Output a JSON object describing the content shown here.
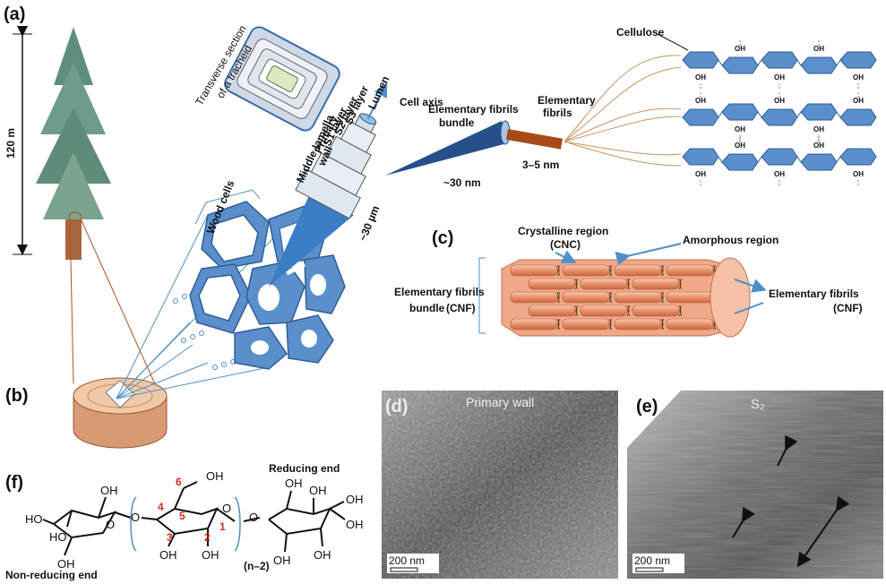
{
  "panel_a": {
    "label": "(a)",
    "height": "120 m",
    "transverse_section": [
      "Transverse section",
      "of a tracheid"
    ],
    "cell_axis": "Cell axis",
    "lumen": "Lumen",
    "layers": [
      "S3 layer",
      "S2 layer",
      "S1 layer"
    ],
    "primary_wall": [
      "Primary",
      "wall"
    ],
    "middle_lamella": "Middle lamella",
    "wood_cells": "Wood cells",
    "cell_size": "~30 µm",
    "bundle": [
      "Elementary fibrils",
      "bundle"
    ],
    "bundle_size": "~30 nm",
    "fibrils": [
      "Elementary",
      "fibrils"
    ],
    "fibril_size": "3–5 nm",
    "cellulose": "Cellulose",
    "hydroxyl": "OH"
  },
  "panel_b": {
    "label": "(b)"
  },
  "panel_c": {
    "label": "(c)",
    "crystalline": [
      "Crystalline region",
      "(CNC)"
    ],
    "amorphous": "Amorphous region",
    "bundle": [
      "Elementary fibrils",
      "bundle",
      "(CNF)"
    ],
    "fibrils": [
      "Elementary fibrils",
      "(CNF)"
    ]
  },
  "panel_d": {
    "label": "(d)",
    "title": "Primary wall",
    "scale": "200 nm"
  },
  "panel_e": {
    "label": "(e)",
    "title": "S₂",
    "scale": "200 nm"
  },
  "panel_f": {
    "label": "(f)",
    "reducing_end": "Reducing end",
    "non_reducing_end": "Non-reducing end",
    "repeat": "(n–2)",
    "hydroxyl": "OH",
    "hydroxyl_left": "HO",
    "oxygen": "O",
    "carbons": [
      "1",
      "2",
      "3",
      "4",
      "5",
      "6"
    ]
  }
}
